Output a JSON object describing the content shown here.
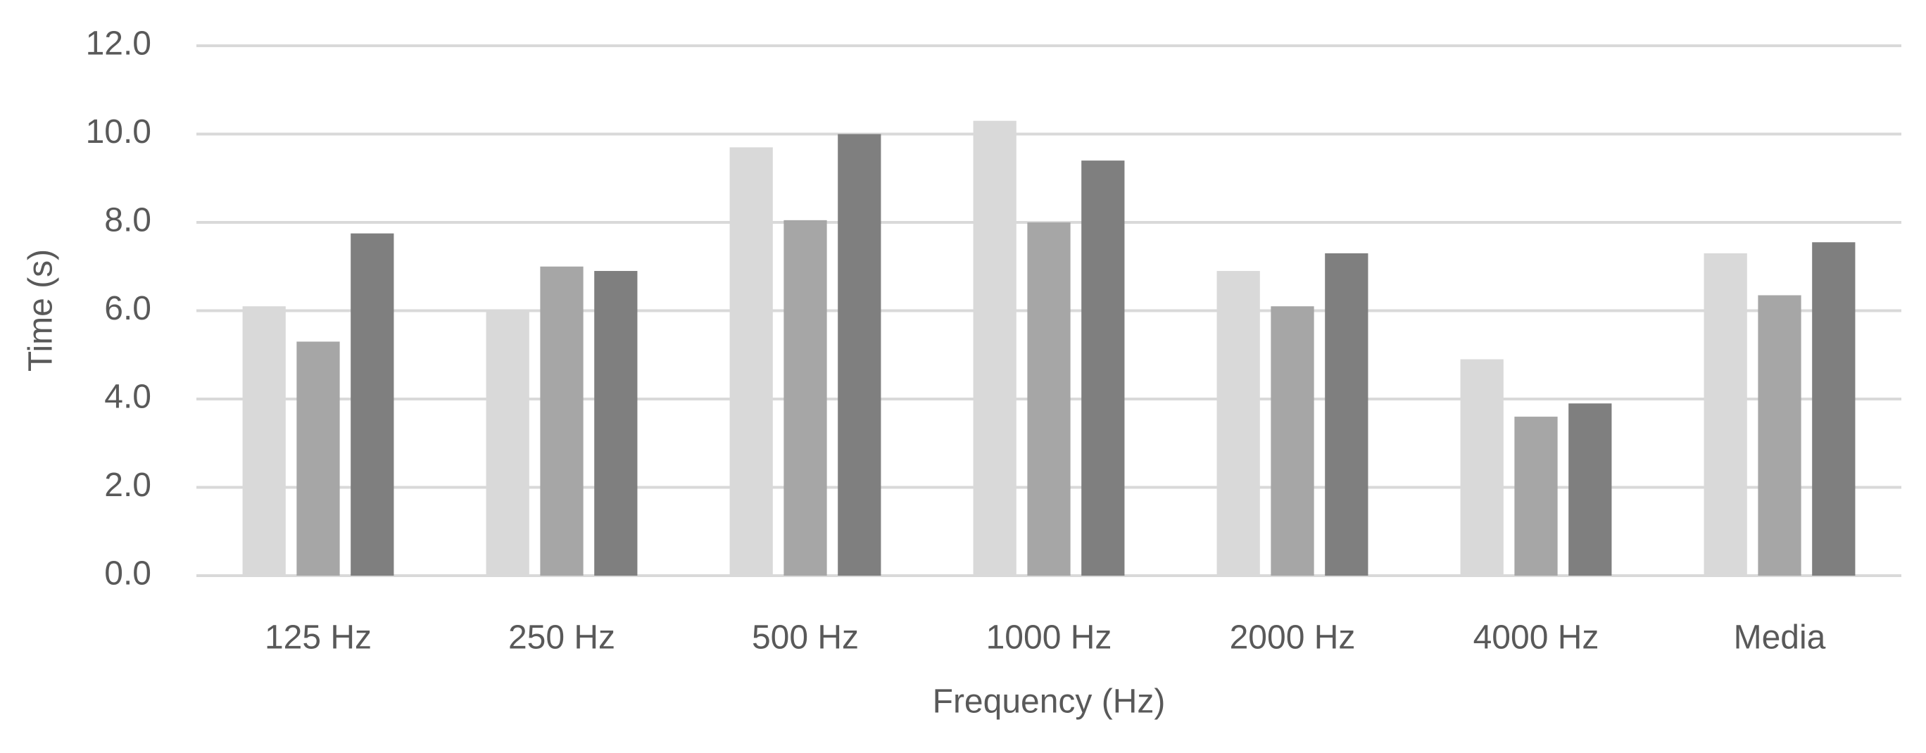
{
  "chart_data": {
    "type": "bar",
    "x_label": "Frequency (Hz)",
    "y_label": "Time (s)",
    "categories": [
      "125 Hz",
      "250 Hz",
      "500 Hz",
      "1000 Hz",
      "2000 Hz",
      "4000 Hz",
      "Media"
    ],
    "series": [
      {
        "color": "#d9d9d9",
        "values": [
          6.1,
          6.0,
          9.7,
          10.3,
          6.9,
          4.9,
          7.3
        ]
      },
      {
        "color": "#a6a6a6",
        "values": [
          5.3,
          7.0,
          8.05,
          8.0,
          6.1,
          3.6,
          6.35
        ]
      },
      {
        "color": "#7f7f7f",
        "values": [
          7.75,
          6.9,
          10.0,
          9.4,
          7.3,
          3.9,
          7.55
        ]
      }
    ],
    "ylim": [
      0,
      12
    ],
    "yticks": [
      {
        "value": 0,
        "label": "0.0"
      },
      {
        "value": 2,
        "label": "2.0"
      },
      {
        "value": 4,
        "label": "4.0"
      },
      {
        "value": 6,
        "label": "6.0"
      },
      {
        "value": 8,
        "label": "8.0"
      },
      {
        "value": 10,
        "label": "10.0"
      },
      {
        "value": 12,
        "label": "12.0"
      }
    ],
    "grid": true
  }
}
